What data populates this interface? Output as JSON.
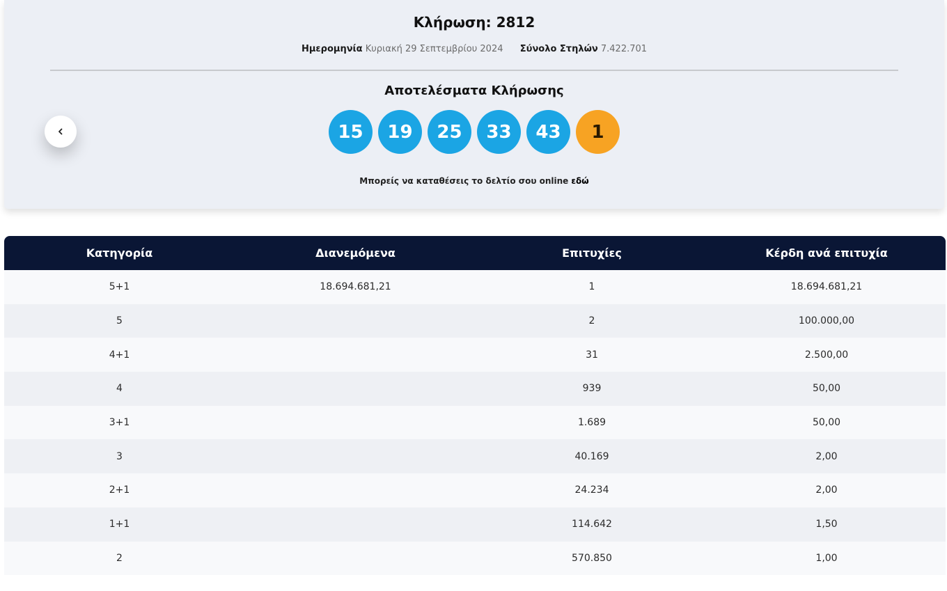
{
  "draw": {
    "title": "Κλήρωση: 2812",
    "date_label": "Ημερομηνία",
    "date_value": "Κυριακή 29 Σεπτεμβρίου 2024",
    "columns_label": "Σύνολο Στηλών",
    "columns_value": "7.422.701",
    "results_title": "Αποτελέσματα Κλήρωσης",
    "numbers": [
      "15",
      "19",
      "25",
      "33",
      "43"
    ],
    "bonus_number": "1",
    "online_text": "Μπορείς να καταθέσεις το δελτίο σου online",
    "online_link": "εδώ",
    "back_icon": "chevron-left-icon"
  },
  "colors": {
    "main_ball": "#1ba5e4",
    "bonus_ball": "#f7a323",
    "table_header": "#0a1635",
    "panel_bg": "#eceff5"
  },
  "table": {
    "headers": [
      "Κατηγορία",
      "Διανεμόμενα",
      "Επιτυχίες",
      "Κέρδη ανά επιτυχία"
    ],
    "rows": [
      {
        "category": "5+1",
        "distributed": "18.694.681,21",
        "winners": "1",
        "prize": "18.694.681,21"
      },
      {
        "category": "5",
        "distributed": "",
        "winners": "2",
        "prize": "100.000,00"
      },
      {
        "category": "4+1",
        "distributed": "",
        "winners": "31",
        "prize": "2.500,00"
      },
      {
        "category": "4",
        "distributed": "",
        "winners": "939",
        "prize": "50,00"
      },
      {
        "category": "3+1",
        "distributed": "",
        "winners": "1.689",
        "prize": "50,00"
      },
      {
        "category": "3",
        "distributed": "",
        "winners": "40.169",
        "prize": "2,00"
      },
      {
        "category": "2+1",
        "distributed": "",
        "winners": "24.234",
        "prize": "2,00"
      },
      {
        "category": "1+1",
        "distributed": "",
        "winners": "114.642",
        "prize": "1,50"
      },
      {
        "category": "2",
        "distributed": "",
        "winners": "570.850",
        "prize": "1,00"
      }
    ]
  }
}
